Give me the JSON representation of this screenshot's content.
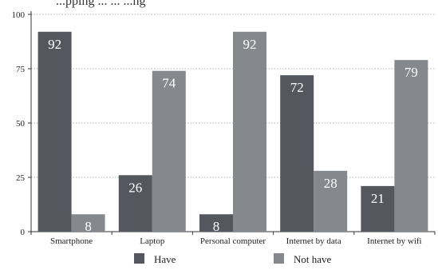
{
  "chart_data": {
    "type": "bar",
    "title": "...pping ... ... ...ng",
    "categories": [
      "Smartphone",
      "Laptop",
      "Personal computer",
      "Internet by data",
      "Internet by wifi"
    ],
    "series": [
      {
        "name": "Have",
        "values": [
          92,
          26,
          8,
          72,
          21
        ],
        "color": "#54575e"
      },
      {
        "name": "Not have",
        "values": [
          8,
          74,
          92,
          28,
          79
        ],
        "color": "#85888d"
      }
    ],
    "ylim": [
      0,
      100
    ],
    "yticks": [
      0,
      25,
      50,
      75,
      100
    ],
    "grid": "horizontal-dotted",
    "legend": "bottom",
    "data_label_color": "#ffffff"
  }
}
